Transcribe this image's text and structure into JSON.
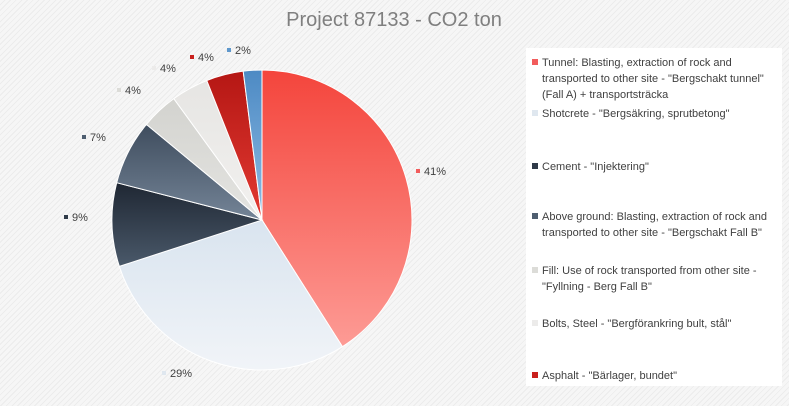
{
  "chart_data": {
    "type": "pie",
    "title": "Project 87133 - CO2 ton",
    "legend_position": "right",
    "slices": [
      {
        "label": "Tunnel: Blasting, extraction of rock and transported to other site - \"Bergschakt tunnel\" (Fall A) + transportsträcka",
        "value": 41,
        "display": "41%",
        "color": "#f25c5c"
      },
      {
        "label": "Shotcrete - \"Bergsäkring, sprutbetong\"",
        "value": 29,
        "display": "29%",
        "color": "#dfe7ef"
      },
      {
        "label": "Cement - \"Injektering\"",
        "value": 9,
        "display": "9%",
        "color": "#2f3a48"
      },
      {
        "label": "Above ground: Blasting, extraction of rock and transported to other site - \"Bergschakt Fall B\"",
        "value": 7,
        "display": "7%",
        "color": "#4e5e70"
      },
      {
        "label": "Fill: Use of rock transported from other site - \"Fyllning - Berg Fall B\"",
        "value": 4,
        "display": "4%",
        "color": "#dcdcd8"
      },
      {
        "label": "Bolts, Steel - \"Bergförankring bult, stål\"",
        "value": 4,
        "display": "4%",
        "color": "#ecebea"
      },
      {
        "label": "Asphalt - \"Bärlager, bundet\"",
        "value": 4,
        "display": "4%",
        "color": "#c9201d"
      },
      {
        "label": "",
        "value": 2,
        "display": "2%",
        "color": "#5f98cc"
      }
    ]
  }
}
